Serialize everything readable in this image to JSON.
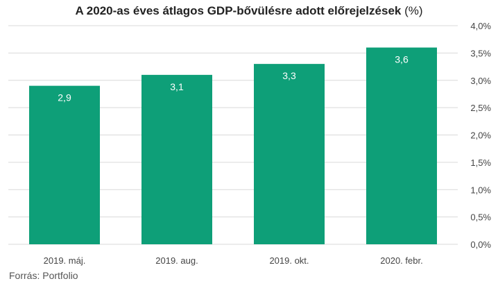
{
  "title": {
    "main": "A 2020-as éves átlagos GDP-bővülésre adott előrejelzések",
    "unit": "(%)"
  },
  "source": "Forrás: Portfolio",
  "colors": {
    "bar": "#0e9f78",
    "grid": "#d9d9d9",
    "text": "#444444",
    "label": "#ffffff"
  },
  "chart_data": {
    "type": "bar",
    "title": "A 2020-as éves átlagos GDP-bővülésre adott előrejelzések (%)",
    "categories": [
      "2019. máj.",
      "2019. aug.",
      "2019. okt.",
      "2020. febr."
    ],
    "values": [
      2.9,
      3.1,
      3.3,
      3.6
    ],
    "value_labels": [
      "2,9",
      "3,1",
      "3,3",
      "3,6"
    ],
    "ylim": [
      0,
      4.0
    ],
    "y_ticks": [
      {
        "value": 0.0,
        "label": "0,0%"
      },
      {
        "value": 0.5,
        "label": "0,5%"
      },
      {
        "value": 1.0,
        "label": "1,0%"
      },
      {
        "value": 1.5,
        "label": "1,5%"
      },
      {
        "value": 2.0,
        "label": "2,0%"
      },
      {
        "value": 2.5,
        "label": "2,5%"
      },
      {
        "value": 3.0,
        "label": "3,0%"
      },
      {
        "value": 3.5,
        "label": "3,5%"
      },
      {
        "value": 4.0,
        "label": "4,0%"
      }
    ],
    "y_axis_side": "right",
    "grid": true,
    "legend": "none"
  }
}
